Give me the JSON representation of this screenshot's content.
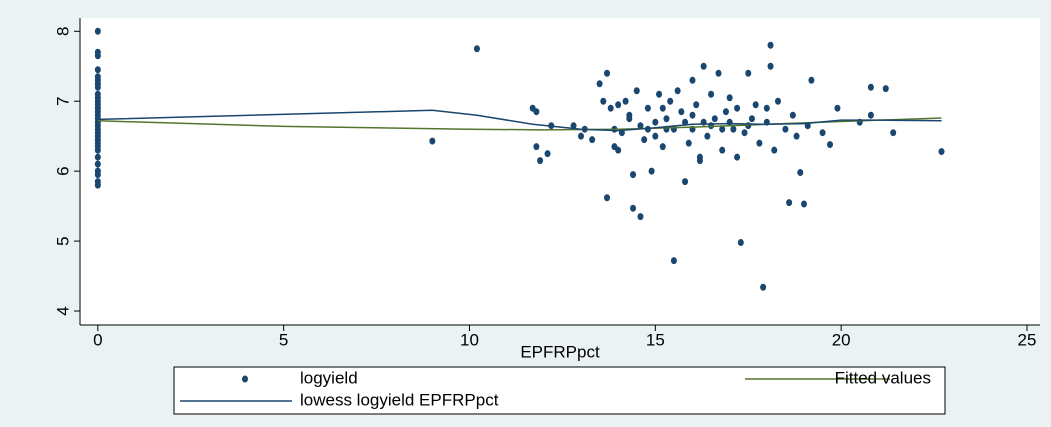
{
  "chart_data": {
    "type": "scatter",
    "x_label": "EPFRPpct",
    "xlim": [
      -0.48,
      25.35
    ],
    "xticks": [
      0,
      5,
      10,
      15,
      20,
      25
    ],
    "ylim": [
      3.8,
      8.19
    ],
    "yticks": [
      4,
      5,
      6,
      7,
      8
    ],
    "series": [
      {
        "name": "logyield",
        "type": "scatter",
        "color": "#1a476f",
        "x": [
          0,
          0,
          0,
          0,
          0,
          0,
          0,
          0,
          0,
          0,
          0,
          0,
          0,
          0,
          0,
          0,
          0,
          0,
          0,
          0,
          0,
          0,
          0,
          0,
          0,
          0,
          0,
          0,
          0,
          0,
          0,
          9,
          10.2,
          11.7,
          11.8,
          11.8,
          11.9,
          12.1,
          12.2,
          12.8,
          13,
          13.1,
          13.3,
          13.5,
          13.6,
          13.7,
          13.7,
          13.8,
          13.9,
          14,
          14.1,
          14.2,
          14.3,
          14.4,
          14.4,
          14.5,
          14.6,
          14.6,
          14.7,
          14.8,
          14.9,
          15,
          15,
          15.1,
          15.2,
          15.3,
          15.4,
          15.5,
          15.5,
          15.6,
          15.7,
          15.8,
          15.9,
          16,
          16,
          16.1,
          16.2,
          16.3,
          16.3,
          16.4,
          16.5,
          16.6,
          16.7,
          16.8,
          16.9,
          17,
          17.1,
          17.2,
          17.3,
          17.4,
          17.5,
          17.6,
          17.7,
          17.8,
          17.9,
          18,
          18.1,
          18.1,
          18.2,
          18.3,
          18.5,
          18.6,
          18.7,
          18.8,
          18.9,
          19,
          19.1,
          19.2,
          19.5,
          19.7,
          19.9,
          20.5,
          20.8,
          20.8,
          21.2,
          21.4,
          22.7,
          14.8,
          15.3,
          16,
          16.5,
          17,
          17.5,
          15.8,
          13.9,
          14.3,
          16.8,
          18,
          15.2,
          17.2,
          16.2,
          14
        ],
        "values": [
          8,
          7.7,
          7.65,
          7.45,
          7.35,
          7.3,
          7.25,
          7.2,
          7.1,
          7.05,
          7,
          6.95,
          6.9,
          6.85,
          6.8,
          6.75,
          6.7,
          6.65,
          6.6,
          6.55,
          6.5,
          6.45,
          6.4,
          6.35,
          6.3,
          6.2,
          6.1,
          6,
          5.95,
          5.85,
          5.8,
          6.43,
          7.75,
          6.9,
          6.85,
          6.35,
          6.15,
          6.25,
          6.65,
          6.65,
          6.5,
          6.6,
          6.45,
          7.25,
          7,
          7.4,
          5.62,
          6.9,
          6.35,
          6.3,
          6.55,
          7,
          6.8,
          5.95,
          5.47,
          7.15,
          5.35,
          6.65,
          6.45,
          6.9,
          6,
          6.7,
          6.5,
          7.1,
          6.35,
          6.75,
          7,
          6.6,
          4.72,
          7.15,
          6.85,
          5.85,
          6.4,
          7.3,
          6.6,
          6.95,
          6.2,
          7.5,
          6.7,
          6.5,
          7.1,
          6.75,
          7.4,
          6.3,
          6.85,
          7.05,
          6.6,
          6.9,
          4.98,
          6.55,
          7.4,
          6.75,
          6.95,
          6.4,
          4.34,
          6.7,
          7.8,
          7.5,
          6.3,
          7,
          6.6,
          5.55,
          6.8,
          6.5,
          5.98,
          5.53,
          6.65,
          7.3,
          6.55,
          6.38,
          6.9,
          6.7,
          7.2,
          6.8,
          7.18,
          6.55,
          6.28,
          6.6,
          6.6,
          6.8,
          6.65,
          6.7,
          6.65,
          6.7,
          6.6,
          6.75,
          6.6,
          6.9,
          6.9,
          6.2,
          6.15,
          6.95
        ]
      },
      {
        "name": "Fitted values",
        "type": "line",
        "color": "#55752f",
        "x": [
          0,
          5,
          10,
          12,
          14,
          16,
          18,
          20,
          22.7
        ],
        "values": [
          6.72,
          6.64,
          6.6,
          6.59,
          6.6,
          6.63,
          6.67,
          6.71,
          6.76
        ]
      },
      {
        "name": "lowess logyield EPFRPpct",
        "type": "line",
        "color": "#1a476f",
        "x": [
          0,
          9,
          10.2,
          11.7,
          13,
          14,
          15,
          16,
          17,
          18,
          19,
          20,
          21,
          22.7
        ],
        "values": [
          6.74,
          6.87,
          6.8,
          6.67,
          6.6,
          6.58,
          6.62,
          6.67,
          6.68,
          6.67,
          6.68,
          6.73,
          6.73,
          6.72
        ]
      }
    ]
  }
}
